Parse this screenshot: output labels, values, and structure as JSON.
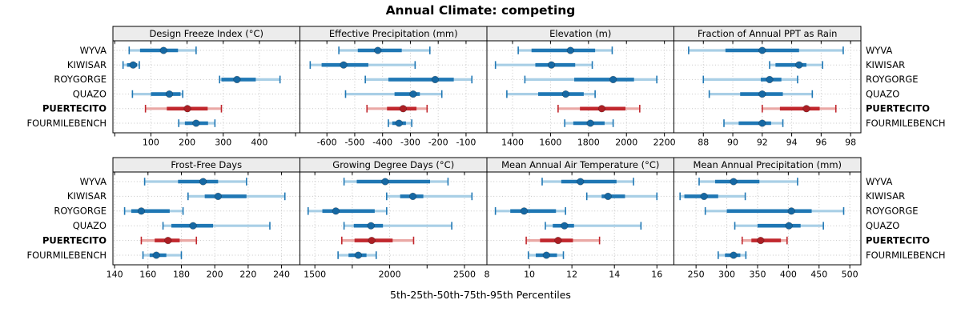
{
  "colors": {
    "series": "#1f77b4",
    "series_light": "#a9cfe6",
    "series_dot": "#1668a3",
    "highlight": "#c1272d",
    "highlight_light": "#eaa8a5",
    "highlight_dot": "#ac1f24",
    "gridline": "#c5c5c5",
    "strip_bg": "#ececec",
    "panel_border": "#000000",
    "text": "#000000"
  },
  "chart_data": {
    "type": "scatter",
    "variant": "lattice-style multi-panel percentile interval dotplot (2 rows x 4 columns)",
    "title": "Annual Climate: competing",
    "xlabel": "5th-25th-50th-75th-95th Percentiles",
    "percentile_levels": [
      5,
      25,
      50,
      75,
      95
    ],
    "sites": [
      "WYVA",
      "KIWISAR",
      "ROYGORGE",
      "QUAZO",
      "PUERTECITO",
      "FOURMILEBENCH"
    ],
    "highlight_site": "PUERTECITO",
    "legend_position": "none",
    "grid": "dotted",
    "panels": [
      {
        "title": "Design Freeze Index (°C)",
        "xlim": [
          -5,
          512
        ],
        "ticks": [
          0,
          100,
          200,
          300,
          400,
          500
        ],
        "tick_labels": [
          "",
          "100",
          "200",
          "300",
          "400",
          ""
        ],
        "values": [
          [
            40,
            70,
            135,
            175,
            225
          ],
          [
            23,
            34,
            51,
            62,
            68
          ],
          [
            290,
            295,
            338,
            390,
            457
          ],
          [
            49,
            100,
            151,
            182,
            188
          ],
          [
            85,
            144,
            201,
            257,
            295
          ],
          [
            177,
            194,
            225,
            258,
            277
          ]
        ]
      },
      {
        "title": "Effective Precipitation (mm)",
        "xlim": [
          -697,
          -25
        ],
        "ticks": [
          -700,
          -600,
          -500,
          -400,
          -300,
          -200,
          -100
        ],
        "tick_labels": [
          "",
          "-600",
          "-500",
          "-400",
          "-300",
          "-200",
          "-100"
        ],
        "values": [
          [
            -557,
            -489,
            -417,
            -331,
            -230
          ],
          [
            -660,
            -619,
            -540,
            -451,
            -283
          ],
          [
            -462,
            -379,
            -211,
            -144,
            -79
          ],
          [
            -533,
            -357,
            -290,
            -266,
            -187
          ],
          [
            -456,
            -384,
            -326,
            -278,
            -240
          ],
          [
            -379,
            -365,
            -341,
            -316,
            -295
          ]
        ]
      },
      {
        "title": "Elevation (m)",
        "xlim": [
          1265,
          2250
        ],
        "ticks": [
          1400,
          1600,
          1800,
          2000,
          2200
        ],
        "tick_labels": [
          "1400",
          "1600",
          "1800",
          "2000",
          "2200"
        ],
        "values": [
          [
            1430,
            1500,
            1705,
            1835,
            1925
          ],
          [
            1310,
            1520,
            1605,
            1730,
            1820
          ],
          [
            1465,
            1725,
            1930,
            2040,
            2160
          ],
          [
            1370,
            1535,
            1680,
            1775,
            1835
          ],
          [
            1640,
            1755,
            1870,
            1995,
            2070
          ],
          [
            1675,
            1720,
            1810,
            1885,
            1930
          ]
        ]
      },
      {
        "title": "Fraction of Annual PPT as Rain",
        "xlim": [
          86,
          98.7
        ],
        "ticks": [
          88,
          90,
          92,
          94,
          96,
          98
        ],
        "tick_labels": [
          "88",
          "90",
          "92",
          "94",
          "96",
          "98"
        ],
        "values": [
          [
            87,
            89.5,
            92,
            94.5,
            97.5
          ],
          [
            92.5,
            92.9,
            94.5,
            95,
            96.1
          ],
          [
            88,
            91.9,
            92.5,
            93.3,
            94.4
          ],
          [
            88.4,
            90.5,
            92,
            93.4,
            95.4
          ],
          [
            92,
            93.2,
            95,
            95.9,
            97
          ],
          [
            89.4,
            90.4,
            92,
            92.6,
            93.4
          ]
        ]
      },
      {
        "title": "Frost-Free Days",
        "xlim": [
          139,
          251
        ],
        "ticks": [
          140,
          160,
          180,
          200,
          220,
          240
        ],
        "tick_labels": [
          "140",
          "160",
          "180",
          "200",
          "220",
          "240"
        ],
        "values": [
          [
            158,
            178,
            193,
            202,
            219
          ],
          [
            184,
            194,
            202,
            219,
            242
          ],
          [
            146,
            150,
            156,
            173,
            181
          ],
          [
            169,
            174,
            187,
            199,
            233
          ],
          [
            156,
            164,
            172,
            179,
            189
          ],
          [
            157,
            161,
            165,
            171,
            180
          ]
        ]
      },
      {
        "title": "Growing Degree Days (°C)",
        "xlim": [
          1400,
          2650
        ],
        "ticks": [
          1500,
          1750,
          2000,
          2250,
          2500
        ],
        "tick_labels": [
          "1500",
          "",
          "2000",
          "",
          "2500"
        ],
        "values": [
          [
            1695,
            1780,
            1970,
            2270,
            2390
          ],
          [
            1980,
            2070,
            2155,
            2225,
            2550
          ],
          [
            1455,
            1550,
            1640,
            1900,
            1980
          ],
          [
            1695,
            1760,
            1875,
            1955,
            2415
          ],
          [
            1680,
            1765,
            1880,
            2020,
            2160
          ],
          [
            1655,
            1725,
            1790,
            1845,
            1910
          ]
        ]
      },
      {
        "title": "Mean Annual Air Temperature (°C)",
        "xlim": [
          8,
          16.8
        ],
        "ticks": [
          8,
          10,
          12,
          14,
          16
        ],
        "tick_labels": [
          "8",
          "10",
          "12",
          "14",
          "16"
        ],
        "values": [
          [
            10.6,
            11.5,
            12.4,
            14.1,
            14.9
          ],
          [
            12.7,
            13.4,
            13.7,
            14.5,
            16
          ],
          [
            8.4,
            9.1,
            9.75,
            11.25,
            11.7
          ],
          [
            10.75,
            11.1,
            11.65,
            12.1,
            15.25
          ],
          [
            9.85,
            10.5,
            11.35,
            12.05,
            13.3
          ],
          [
            9.95,
            10.3,
            10.8,
            11.3,
            11.6
          ]
        ]
      },
      {
        "title": "Mean Annual Precipitation (mm)",
        "xlim": [
          214,
          518
        ],
        "ticks": [
          250,
          300,
          350,
          400,
          450,
          500
        ],
        "tick_labels": [
          "250",
          "300",
          "350",
          "400",
          "450",
          "500"
        ],
        "values": [
          [
            255,
            281,
            311,
            353,
            415
          ],
          [
            224,
            231,
            263,
            286,
            330
          ],
          [
            265,
            300,
            405,
            438,
            490
          ],
          [
            313,
            350,
            401,
            420,
            457
          ],
          [
            325,
            340,
            355,
            388,
            398
          ],
          [
            286,
            297,
            311,
            322,
            331
          ]
        ]
      }
    ]
  }
}
